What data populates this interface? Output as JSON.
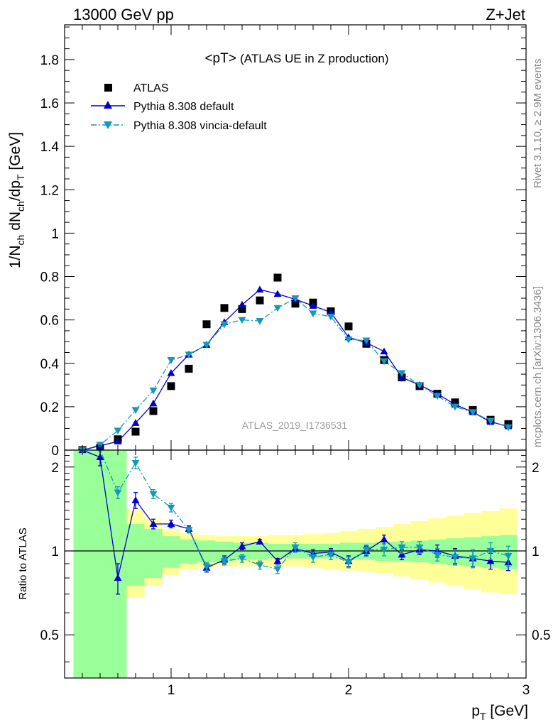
{
  "header": {
    "left": "13000 GeV pp",
    "right": "Z+Jet"
  },
  "side_text": {
    "rivet": "Rivet 3.1.10, ≥ 2.9M events",
    "mcplots": "mcplots.cern.ch [arXiv:1306.3436]"
  },
  "watermark": "ATLAS_2019_I1736531",
  "chart_data": [
    {
      "type": "scatter",
      "title_main": "<pT>",
      "title_sub": "(ATLAS UE in Z production)",
      "ylabel": {
        "base": "1/N",
        "sub1": "ch",
        "mid1": " dN",
        "sub2": "ch",
        "mid2": "/dp",
        "sub3": "T",
        "unit": " [GeV]"
      },
      "xlim": [
        0.4,
        3.0
      ],
      "ylim": [
        0,
        1.96
      ],
      "yticks": [
        0,
        0.2,
        0.4,
        0.6,
        0.8,
        1,
        1.2,
        1.4,
        1.6,
        1.8
      ],
      "ytick_labels": [
        "0",
        "0.2",
        "0.4",
        "0.6",
        "0.8",
        "1",
        "1.2",
        "1.4",
        "1.6",
        "1.8"
      ],
      "x": [
        0.5,
        0.6,
        0.7,
        0.8,
        0.9,
        1.0,
        1.1,
        1.2,
        1.3,
        1.4,
        1.5,
        1.6,
        1.7,
        1.8,
        1.9,
        2.0,
        2.1,
        2.2,
        2.3,
        2.4,
        2.5,
        2.6,
        2.7,
        2.8,
        2.9
      ],
      "legend": {
        "placement": "top-left",
        "entries": [
          "ATLAS",
          "Pythia 8.308 default",
          "Pythia 8.308 vincia-default"
        ]
      },
      "series": [
        {
          "name": "ATLAS",
          "color": "#000000",
          "marker": "square",
          "values": [
            0.0,
            0.01,
            0.05,
            0.085,
            0.18,
            0.295,
            0.375,
            0.58,
            0.655,
            0.65,
            0.69,
            0.795,
            0.675,
            0.68,
            0.64,
            0.57,
            0.49,
            0.415,
            0.335,
            0.295,
            0.26,
            0.22,
            0.185,
            0.14,
            0.12
          ]
        },
        {
          "name": "Pythia 8.308 default",
          "color": "#0000cc",
          "marker": "triangle-up",
          "line": "solid",
          "values": [
            0.0,
            0.02,
            0.04,
            0.125,
            0.215,
            0.355,
            0.44,
            0.485,
            0.59,
            0.67,
            0.74,
            0.72,
            0.695,
            0.665,
            0.635,
            0.52,
            0.495,
            0.455,
            0.335,
            0.3,
            0.26,
            0.21,
            0.175,
            0.13,
            0.11
          ]
        },
        {
          "name": "Pythia 8.308 vincia-default",
          "color": "#1199bb",
          "marker": "triangle-down",
          "line": "dashdot",
          "values": [
            0.0,
            0.025,
            0.09,
            0.185,
            0.275,
            0.415,
            0.44,
            0.485,
            0.58,
            0.6,
            0.595,
            0.655,
            0.7,
            0.63,
            0.615,
            0.51,
            0.505,
            0.41,
            0.355,
            0.3,
            0.25,
            0.2,
            0.175,
            0.135,
            0.105
          ]
        }
      ]
    },
    {
      "type": "line",
      "ylabel": "Ratio to ATLAS",
      "xlabel": {
        "base": "p",
        "sub": "T",
        "unit": " [GeV]"
      },
      "xlim": [
        0.4,
        3.0
      ],
      "ylim": [
        0.35,
        2.3
      ],
      "xticks": [
        1,
        2,
        3
      ],
      "xtick_labels": [
        "1",
        "2",
        "3"
      ],
      "yticks": [
        0.5,
        1,
        2
      ],
      "ytick_labels": [
        "0.5",
        "1",
        "2"
      ],
      "reference_line": 1,
      "x": [
        0.5,
        0.6,
        0.7,
        0.8,
        0.9,
        1.0,
        1.1,
        1.2,
        1.3,
        1.4,
        1.5,
        1.6,
        1.7,
        1.8,
        1.9,
        2.0,
        2.1,
        2.2,
        2.3,
        2.4,
        2.5,
        2.6,
        2.7,
        2.8,
        2.9
      ],
      "uncertainty_bands": {
        "bin_edges": [
          0.45,
          0.55,
          0.65,
          0.75,
          0.85,
          0.95,
          1.05,
          1.15,
          1.25,
          1.35,
          1.45,
          1.55,
          1.65,
          1.75,
          1.85,
          1.95,
          2.05,
          2.15,
          2.25,
          2.35,
          2.45,
          2.55,
          2.65,
          2.75,
          2.85,
          2.95
        ],
        "stat_color": "#99ff99",
        "total_color": "#ffff99",
        "stat_lo": [
          0.35,
          0.35,
          0.35,
          0.75,
          0.8,
          0.87,
          0.9,
          0.91,
          0.92,
          0.93,
          0.93,
          0.94,
          0.94,
          0.94,
          0.94,
          0.93,
          0.93,
          0.92,
          0.92,
          0.91,
          0.9,
          0.89,
          0.88,
          0.87,
          0.86
        ],
        "stat_hi": [
          2.3,
          2.3,
          2.3,
          1.25,
          1.2,
          1.13,
          1.1,
          1.09,
          1.08,
          1.07,
          1.07,
          1.06,
          1.06,
          1.06,
          1.06,
          1.07,
          1.07,
          1.08,
          1.08,
          1.09,
          1.1,
          1.11,
          1.12,
          1.13,
          1.14
        ],
        "total_lo": [
          0.35,
          0.35,
          0.41,
          0.68,
          0.75,
          0.82,
          0.86,
          0.87,
          0.88,
          0.88,
          0.88,
          0.88,
          0.88,
          0.87,
          0.86,
          0.85,
          0.84,
          0.83,
          0.81,
          0.79,
          0.77,
          0.75,
          0.73,
          0.71,
          0.7
        ],
        "total_hi": [
          2.3,
          2.3,
          2.3,
          1.4,
          1.3,
          1.2,
          1.16,
          1.14,
          1.13,
          1.13,
          1.13,
          1.14,
          1.14,
          1.15,
          1.16,
          1.18,
          1.2,
          1.22,
          1.25,
          1.28,
          1.31,
          1.34,
          1.37,
          1.39,
          1.42
        ]
      },
      "series": [
        {
          "name": "Pythia 8.308 default",
          "color": "#0000cc",
          "marker": "triangle-up",
          "line": "solid",
          "values": [
            2.3,
            2.17,
            0.8,
            1.52,
            1.25,
            1.25,
            1.2,
            0.87,
            0.93,
            1.04,
            1.08,
            0.92,
            1.02,
            0.98,
            0.99,
            0.92,
            1.0,
            1.1,
            0.97,
            1.01,
            1.0,
            0.96,
            0.94,
            0.92,
            0.91
          ],
          "err": [
            0,
            0.15,
            0.1,
            0.1,
            0.05,
            0.04,
            0.03,
            0.03,
            0.03,
            0.03,
            0.02,
            0.02,
            0.03,
            0.03,
            0.03,
            0.04,
            0.04,
            0.04,
            0.04,
            0.04,
            0.05,
            0.06,
            0.06,
            0.06,
            0.06
          ]
        },
        {
          "name": "Pythia 8.308 vincia-default",
          "color": "#1199bb",
          "marker": "triangle-down",
          "line": "dashdot",
          "values": [
            2.3,
            2.3,
            1.62,
            2.07,
            1.6,
            1.43,
            1.19,
            0.88,
            0.92,
            0.94,
            0.89,
            0.86,
            1.03,
            0.95,
            0.97,
            0.91,
            1.01,
            1.01,
            1.03,
            1.03,
            0.97,
            0.95,
            0.94,
            1.0,
            0.96
          ],
          "err": [
            0,
            0,
            0.08,
            0.1,
            0.06,
            0.05,
            0.03,
            0.03,
            0.03,
            0.03,
            0.03,
            0.03,
            0.04,
            0.04,
            0.04,
            0.04,
            0.04,
            0.05,
            0.05,
            0.05,
            0.05,
            0.06,
            0.07,
            0.07,
            0.08
          ]
        }
      ]
    }
  ]
}
